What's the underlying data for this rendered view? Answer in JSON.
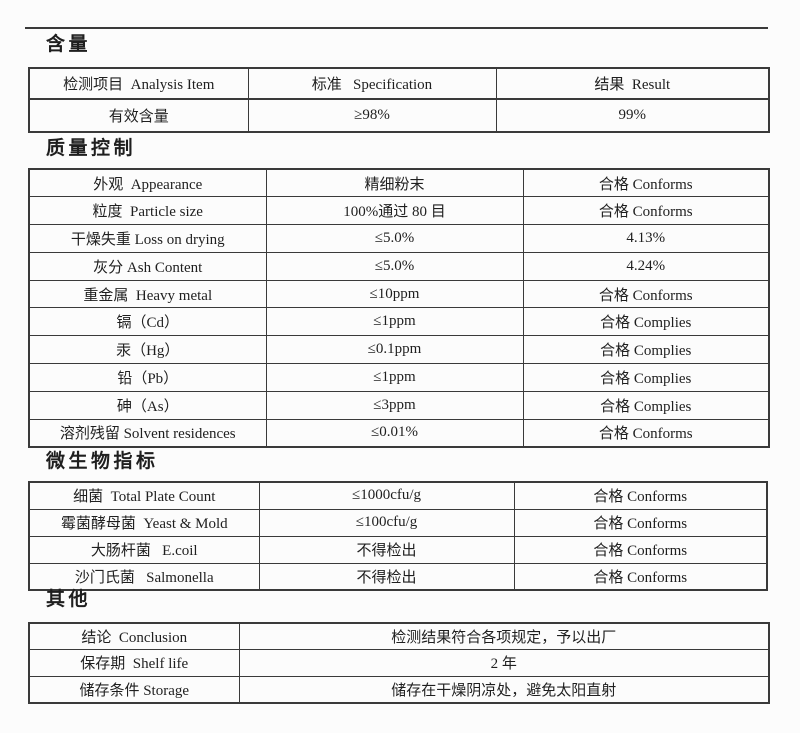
{
  "page": {
    "background": "#fcfcfc",
    "text_color": "#1f1f1f",
    "border_color": "#3a3a3a"
  },
  "sections": [
    {
      "heading": "含量",
      "rows": [
        [
          "检测项目  Analysis Item",
          "标准   Specification",
          "结果  Result"
        ],
        [
          "有效含量",
          "≥98%",
          "99%"
        ]
      ]
    },
    {
      "heading": "质量控制",
      "rows": [
        [
          "外观  Appearance",
          "精细粉末",
          "合格 Conforms"
        ],
        [
          "粒度  Particle size",
          "100%通过 80 目",
          "合格 Conforms"
        ],
        [
          "干燥失重 Loss on drying",
          "≤5.0%",
          "4.13%"
        ],
        [
          "灰分 Ash Content",
          "≤5.0%",
          "4.24%"
        ],
        [
          "重金属  Heavy metal",
          "≤10ppm",
          "合格 Conforms"
        ],
        [
          "镉（Cd）",
          "≤1ppm",
          "合格 Complies"
        ],
        [
          "汞（Hg）",
          "≤0.1ppm",
          "合格 Complies"
        ],
        [
          "铅（Pb）",
          "≤1ppm",
          "合格 Complies"
        ],
        [
          "砷（As）",
          "≤3ppm",
          "合格 Complies"
        ],
        [
          "溶剂残留 Solvent residences",
          "≤0.01%",
          "合格 Conforms"
        ]
      ]
    },
    {
      "heading": "微生物指标",
      "rows": [
        [
          "细菌  Total Plate Count",
          "≤1000cfu/g",
          "合格 Conforms"
        ],
        [
          "霉菌酵母菌  Yeast & Mold",
          "≤100cfu/g",
          "合格 Conforms"
        ],
        [
          "大肠杆菌   E.coil",
          "不得检出",
          "合格 Conforms"
        ],
        [
          "沙门氏菌   Salmonella",
          "不得检出",
          "合格 Conforms"
        ]
      ]
    },
    {
      "heading": "其他",
      "rows": [
        [
          "结论  Conclusion",
          "检测结果符合各项规定，予以出厂"
        ],
        [
          "保存期  Shelf life",
          "2 年"
        ],
        [
          "储存条件 Storage",
          "储存在干燥阴凉处，避免太阳直射"
        ]
      ]
    }
  ]
}
